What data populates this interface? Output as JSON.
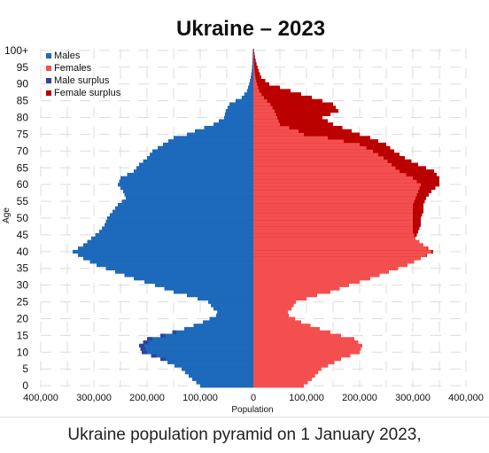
{
  "chart_data": {
    "type": "bar",
    "orientation": "horizontal-pyramid",
    "title": "Ukraine – 2023",
    "xlabel": "Population",
    "ylabel": "Age",
    "age_ticks": [
      "0",
      "5",
      "10",
      "15",
      "20",
      "25",
      "30",
      "35",
      "40",
      "45",
      "50",
      "55",
      "60",
      "65",
      "70",
      "75",
      "80",
      "85",
      "90",
      "95",
      "100+"
    ],
    "x_ticks": [
      "400,000",
      "300,000",
      "200,000",
      "100,000",
      "0",
      "100,000",
      "200,000",
      "300,000",
      "400,000"
    ],
    "xlim": [
      -400000,
      400000
    ],
    "grid": true,
    "legend_position": "top-left",
    "legend": [
      {
        "name": "Males",
        "color": "#1d69bb"
      },
      {
        "name": "Females",
        "color": "#f44f4f"
      },
      {
        "name": "Male surplus",
        "color": "#2f4499"
      },
      {
        "name": "Female surplus",
        "color": "#bb0000"
      }
    ],
    "males_anchor_ages": [
      0,
      2,
      5,
      8,
      10,
      12,
      14,
      15,
      17,
      19,
      21,
      22,
      23,
      24,
      25,
      26,
      27,
      28,
      30,
      32,
      34,
      36,
      38,
      40,
      42,
      44,
      46,
      48,
      50,
      52,
      54,
      56,
      58,
      60,
      62,
      64,
      66,
      68,
      70,
      72,
      74,
      75,
      76,
      78,
      80,
      82,
      84,
      86,
      88,
      90,
      92,
      94,
      96,
      98,
      100
    ],
    "males_anchor_values": [
      100000,
      115000,
      135000,
      175000,
      210000,
      215000,
      200000,
      175000,
      130000,
      95000,
      70000,
      68000,
      75000,
      80000,
      85000,
      105000,
      125000,
      150000,
      185000,
      225000,
      260000,
      295000,
      320000,
      340000,
      320000,
      305000,
      290000,
      280000,
      275000,
      265000,
      255000,
      240000,
      245000,
      255000,
      250000,
      225000,
      215000,
      200000,
      190000,
      170000,
      150000,
      125000,
      110000,
      75000,
      55000,
      52000,
      45000,
      22000,
      12000,
      8000,
      5000,
      3000,
      2000,
      1500,
      1000
    ],
    "females_anchor_ages": [
      0,
      2,
      5,
      8,
      10,
      12,
      14,
      15,
      17,
      19,
      21,
      22,
      23,
      24,
      25,
      26,
      27,
      28,
      30,
      32,
      34,
      36,
      38,
      40,
      42,
      44,
      46,
      48,
      50,
      52,
      54,
      56,
      58,
      60,
      62,
      64,
      66,
      68,
      70,
      72,
      74,
      75,
      76,
      78,
      80,
      82,
      84,
      86,
      88,
      90,
      92,
      94,
      96,
      98,
      100
    ],
    "females_anchor_values": [
      95000,
      110000,
      128000,
      165000,
      200000,
      205000,
      190000,
      165000,
      125000,
      90000,
      67000,
      65000,
      72000,
      76000,
      80000,
      100000,
      120000,
      145000,
      180000,
      220000,
      255000,
      290000,
      315000,
      335000,
      320000,
      305000,
      300000,
      300000,
      300000,
      300000,
      300000,
      305000,
      310000,
      315000,
      300000,
      275000,
      260000,
      245000,
      225000,
      200000,
      140000,
      95000,
      85000,
      50000,
      45000,
      40000,
      32000,
      20000,
      11000,
      7000,
      4000,
      2500,
      1500,
      1000,
      700
    ],
    "total_females_anchor_ages": [
      0,
      2,
      5,
      8,
      10,
      12,
      14,
      15,
      17,
      19,
      21,
      22,
      23,
      24,
      25,
      26,
      27,
      28,
      30,
      32,
      34,
      36,
      38,
      40,
      42,
      44,
      46,
      48,
      50,
      52,
      54,
      56,
      58,
      60,
      62,
      64,
      66,
      68,
      70,
      72,
      74,
      75,
      76,
      78,
      80,
      82,
      84,
      86,
      88,
      90,
      92,
      94,
      96,
      98,
      100
    ],
    "total_females_anchor_values": [
      95000,
      110000,
      128000,
      165000,
      200000,
      205000,
      190000,
      165000,
      125000,
      90000,
      67000,
      65000,
      72000,
      76000,
      80000,
      100000,
      120000,
      145000,
      180000,
      220000,
      255000,
      290000,
      315000,
      338000,
      320000,
      305000,
      310000,
      315000,
      315000,
      320000,
      320000,
      325000,
      335000,
      350000,
      350000,
      340000,
      310000,
      285000,
      265000,
      250000,
      220000,
      200000,
      185000,
      150000,
      130000,
      160000,
      150000,
      110000,
      70000,
      30000,
      15000,
      10000,
      6000,
      3000,
      1500
    ]
  },
  "caption": "Ukraine population pyramid on 1 January 2023,"
}
